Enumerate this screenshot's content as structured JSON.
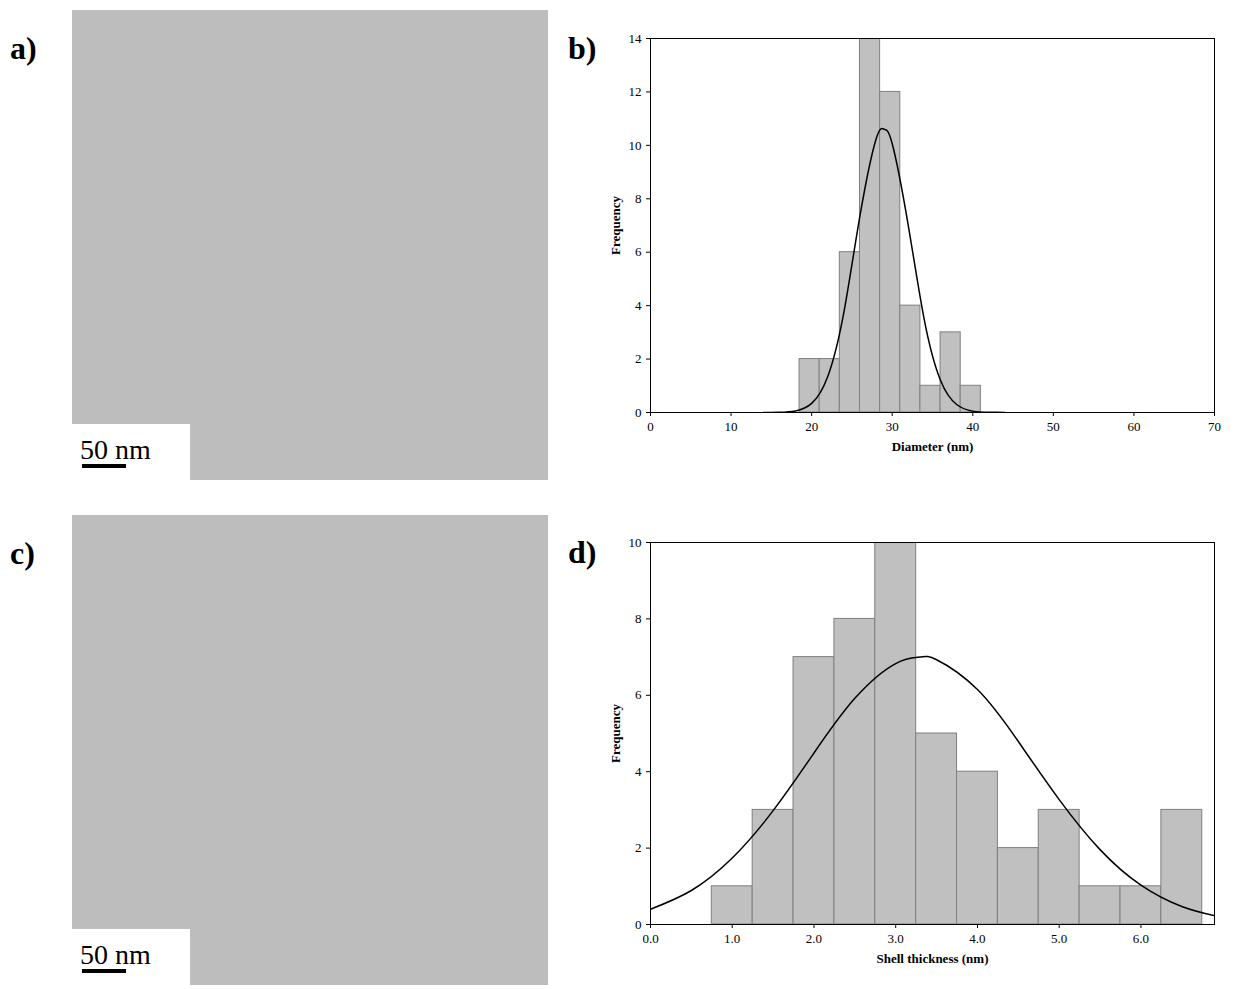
{
  "images": [
    {
      "panel": "a)",
      "scale_bar": "50 nm"
    },
    {
      "panel": "c)",
      "scale_bar": "50 nm"
    }
  ],
  "chart_data": [
    {
      "panel": "b)",
      "type": "histogram",
      "x_label": "Diameter (nm)",
      "y_label": "Frequency",
      "bins": [
        18.5,
        21,
        23.5,
        26,
        28.5,
        31,
        33.5,
        36,
        38.5,
        41
      ],
      "values": [
        2,
        2,
        6,
        14,
        12,
        4,
        1,
        3,
        1
      ],
      "color": "#c0c0c0",
      "xlim": [
        0,
        70
      ],
      "xticks": [
        0,
        10,
        20,
        30,
        40,
        50,
        60,
        70
      ],
      "ylim": [
        0,
        14
      ],
      "yticks": [
        0,
        2,
        4,
        6,
        8,
        10,
        12,
        14
      ],
      "fit": {
        "type": "line",
        "color": "#000000",
        "x": [
          14,
          16,
          18,
          20,
          22,
          24,
          26,
          28,
          29,
          30,
          32,
          34,
          36,
          38,
          40,
          42,
          44
        ],
        "values": [
          0,
          0.01,
          0.06,
          0.34,
          1.35,
          3.75,
          7.37,
          10.24,
          10.6,
          10.06,
          6.99,
          3.44,
          1.2,
          0.3,
          0.05,
          0.01,
          0
        ]
      }
    },
    {
      "panel": "d)",
      "type": "histogram",
      "x_label": "Shell thickness (nm)",
      "y_label": "Frequency",
      "bins": [
        0.75,
        1.25,
        1.75,
        2.25,
        2.75,
        3.25,
        3.75,
        4.25,
        4.75,
        5.25,
        5.75,
        6.25,
        6.75
      ],
      "values": [
        1,
        3,
        7,
        8,
        10,
        5,
        4,
        2,
        3,
        1,
        1,
        3
      ],
      "color": "#c0c0c0",
      "xlim": [
        0,
        6.9
      ],
      "xticks": [
        0,
        1,
        2,
        3,
        4,
        5,
        6
      ],
      "ylim": [
        0,
        10
      ],
      "yticks": [
        0,
        2,
        4,
        6,
        8,
        10
      ],
      "fit": {
        "type": "line",
        "color": "#000000",
        "x": [
          0,
          0.5,
          1,
          1.5,
          2,
          2.5,
          3,
          3.3,
          3.5,
          4,
          4.5,
          5,
          5.5,
          6,
          6.5,
          6.9
        ],
        "values": [
          0.4,
          0.89,
          1.74,
          2.98,
          4.49,
          5.92,
          6.83,
          7,
          6.93,
          6.15,
          4.79,
          3.27,
          1.96,
          1.03,
          0.47,
          0.23
        ]
      }
    }
  ]
}
